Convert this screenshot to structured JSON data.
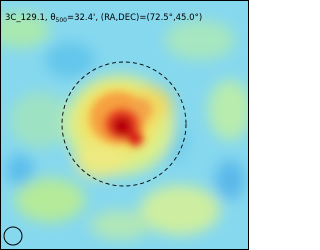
{
  "map": {
    "title_prefix": "3C_129.1, θ",
    "title_sub": "500",
    "title_suffix": "=32.4', (RA,DEC)=(72.5°,45.0°)"
  }
}
